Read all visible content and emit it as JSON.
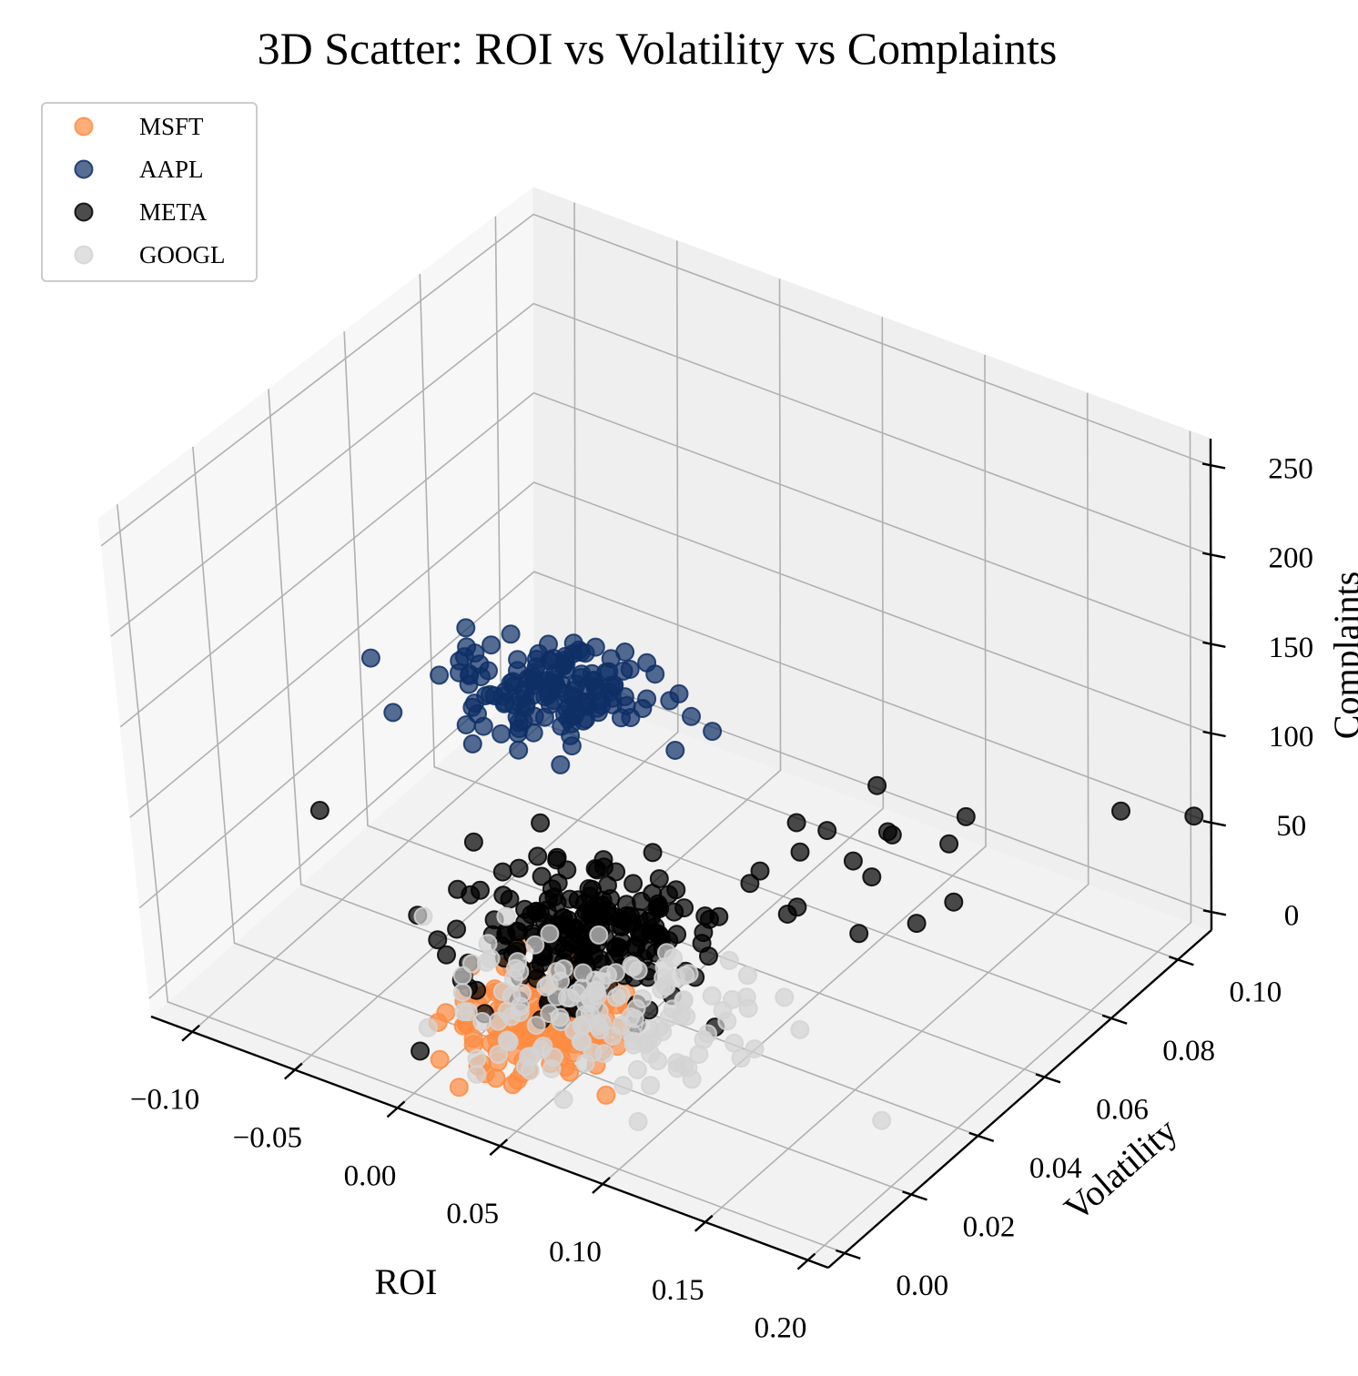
{
  "chart_data": {
    "type": "scatter",
    "title": "3D Scatter: ROI vs Volatility vs Complaints",
    "xlabel": "ROI",
    "ylabel": "Volatility",
    "zlabel": "Complaints",
    "xlim": [
      -0.12,
      0.21
    ],
    "ylim": [
      -0.005,
      0.11
    ],
    "zlim": [
      -10,
      265
    ],
    "x_ticks": [
      "−0.10",
      "−0.05",
      "0.00",
      "0.05",
      "0.10",
      "0.15",
      "0.20"
    ],
    "y_ticks": [
      "0.00",
      "0.02",
      "0.04",
      "0.06",
      "0.08",
      "0.10"
    ],
    "z_ticks": [
      "0",
      "50",
      "100",
      "150",
      "200",
      "250"
    ],
    "grid": true,
    "legend_position": "top-left",
    "series": [
      {
        "name": "MSFT",
        "color": "#ff8c42",
        "clusters": [
          {
            "x": 0.025,
            "y": 0.023,
            "z": 2,
            "sx": 0.018,
            "sy": 0.008,
            "sz": 3,
            "n": 150
          }
        ],
        "points": [
          {
            "x": -0.02,
            "y": 0.03,
            "z": 3
          },
          {
            "x": 0.075,
            "y": 0.012,
            "z": 1
          }
        ]
      },
      {
        "name": "AAPL",
        "color": "#0e2f66",
        "clusters": [
          {
            "x": 0.03,
            "y": 0.03,
            "z": 178,
            "sx": 0.02,
            "sy": 0.007,
            "sz": 4,
            "n": 150
          }
        ],
        "points": [
          {
            "x": 0.09,
            "y": 0.035,
            "z": 180
          },
          {
            "x": 0.1,
            "y": 0.035,
            "z": 176
          },
          {
            "x": -0.015,
            "y": 0.03,
            "z": 168
          },
          {
            "x": -0.01,
            "y": 0.03,
            "z": 195
          }
        ]
      },
      {
        "name": "META",
        "color": "#000000",
        "clusters": [
          {
            "x": 0.035,
            "y": 0.032,
            "z": 42,
            "sx": 0.025,
            "sy": 0.01,
            "sz": 8,
            "n": 220
          }
        ],
        "points": [
          {
            "x": -0.09,
            "y": 0.03,
            "z": 60
          },
          {
            "x": 0.13,
            "y": 0.062,
            "z": 115
          },
          {
            "x": 0.14,
            "y": 0.06,
            "z": 95
          },
          {
            "x": 0.15,
            "y": 0.075,
            "z": 85
          },
          {
            "x": 0.15,
            "y": 0.07,
            "z": 78
          },
          {
            "x": 0.12,
            "y": 0.07,
            "z": 72
          },
          {
            "x": 0.09,
            "y": 0.07,
            "z": 60
          },
          {
            "x": 0.075,
            "y": 0.07,
            "z": 58
          },
          {
            "x": 0.085,
            "y": 0.065,
            "z": 54
          },
          {
            "x": 0.12,
            "y": 0.065,
            "z": 55
          },
          {
            "x": 0.16,
            "y": 0.065,
            "z": 58
          },
          {
            "x": 0.15,
            "y": 0.06,
            "z": 50
          },
          {
            "x": 0.1,
            "y": 0.055,
            "z": 46
          },
          {
            "x": 0.13,
            "y": 0.055,
            "z": 44
          },
          {
            "x": 0.07,
            "y": 0.062,
            "z": 42
          },
          {
            "x": 0.07,
            "y": 0.059,
            "z": 40
          },
          {
            "x": 0.12,
            "y": 0.06,
            "z": 72
          },
          {
            "x": 0.2,
            "y": 0.09,
            "z": 85
          },
          {
            "x": 0.21,
            "y": 0.105,
            "z": 62
          },
          {
            "x": 0.095,
            "y": 0.055,
            "z": 40
          },
          {
            "x": 0.1,
            "y": 0.03,
            "z": 20
          }
        ]
      },
      {
        "name": "GOOGL",
        "color": "#d3d3d3",
        "clusters": [
          {
            "x": 0.04,
            "y": 0.03,
            "z": 5,
            "sx": 0.03,
            "sy": 0.011,
            "sz": 4,
            "n": 140
          }
        ],
        "points": [
          {
            "x": 0.18,
            "y": 0.03,
            "z": 2
          },
          {
            "x": 0.1,
            "y": 0.035,
            "z": 3
          },
          {
            "x": 0.11,
            "y": 0.035,
            "z": 4
          },
          {
            "x": 0.1,
            "y": 0.05,
            "z": 4
          },
          {
            "x": 0.09,
            "y": 0.045,
            "z": 8
          }
        ]
      }
    ]
  }
}
